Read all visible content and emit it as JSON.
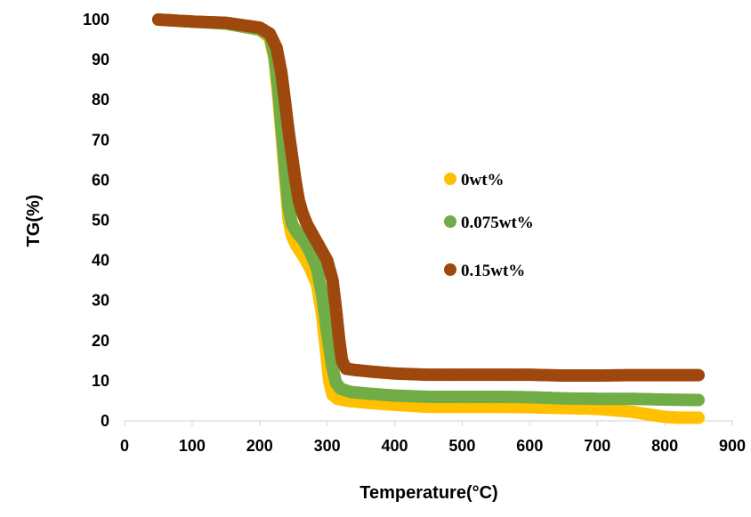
{
  "chart_data": {
    "type": "scatter",
    "title": "",
    "xlabel": "Temperature(°C)",
    "ylabel": "TG(%)",
    "xlim": [
      0,
      900
    ],
    "ylim": [
      0,
      100
    ],
    "xticks": [
      0,
      100,
      200,
      300,
      400,
      500,
      600,
      700,
      800,
      900
    ],
    "yticks": [
      0,
      10,
      20,
      30,
      40,
      50,
      60,
      70,
      80,
      90,
      100
    ],
    "grid": false,
    "legend_position": "right",
    "series": [
      {
        "name": "0wt%",
        "color": "#FFC000",
        "points": [
          [
            50,
            100
          ],
          [
            100,
            99.5
          ],
          [
            150,
            99
          ],
          [
            200,
            97.5
          ],
          [
            215,
            95.5
          ],
          [
            222,
            90
          ],
          [
            228,
            80
          ],
          [
            233,
            70
          ],
          [
            238,
            60
          ],
          [
            243,
            50
          ],
          [
            248,
            46
          ],
          [
            255,
            43.5
          ],
          [
            265,
            41
          ],
          [
            275,
            38
          ],
          [
            285,
            34
          ],
          [
            292,
            27
          ],
          [
            298,
            18
          ],
          [
            303,
            10
          ],
          [
            308,
            6.5
          ],
          [
            315,
            5.5
          ],
          [
            330,
            5
          ],
          [
            360,
            4.5
          ],
          [
            400,
            4
          ],
          [
            450,
            3.5
          ],
          [
            500,
            3.5
          ],
          [
            550,
            3.5
          ],
          [
            600,
            3.4
          ],
          [
            650,
            3.2
          ],
          [
            700,
            3
          ],
          [
            750,
            2.3
          ],
          [
            780,
            1.5
          ],
          [
            800,
            1
          ],
          [
            820,
            0.8
          ],
          [
            850,
            0.8
          ]
        ]
      },
      {
        "name": "0.075wt%",
        "color": "#70AD47",
        "points": [
          [
            50,
            100
          ],
          [
            100,
            99.5
          ],
          [
            150,
            99
          ],
          [
            200,
            97.5
          ],
          [
            215,
            96
          ],
          [
            222,
            91
          ],
          [
            228,
            82
          ],
          [
            233,
            72
          ],
          [
            238,
            62
          ],
          [
            243,
            53
          ],
          [
            248,
            49
          ],
          [
            255,
            47
          ],
          [
            265,
            45
          ],
          [
            275,
            42
          ],
          [
            285,
            38
          ],
          [
            293,
            31
          ],
          [
            300,
            22
          ],
          [
            307,
            14
          ],
          [
            313,
            9.5
          ],
          [
            320,
            8
          ],
          [
            335,
            7.2
          ],
          [
            360,
            6.8
          ],
          [
            400,
            6.3
          ],
          [
            450,
            6
          ],
          [
            500,
            6
          ],
          [
            550,
            6
          ],
          [
            600,
            5.9
          ],
          [
            650,
            5.6
          ],
          [
            700,
            5.5
          ],
          [
            750,
            5.5
          ],
          [
            800,
            5.3
          ],
          [
            850,
            5.2
          ]
        ]
      },
      {
        "name": "0.15wt%",
        "color": "#9E480E",
        "points": [
          [
            50,
            100
          ],
          [
            100,
            99.5
          ],
          [
            150,
            99.2
          ],
          [
            200,
            98
          ],
          [
            215,
            96.5
          ],
          [
            225,
            93
          ],
          [
            232,
            87
          ],
          [
            238,
            79
          ],
          [
            243,
            72
          ],
          [
            248,
            66
          ],
          [
            253,
            60
          ],
          [
            258,
            55
          ],
          [
            263,
            52
          ],
          [
            270,
            49
          ],
          [
            280,
            46
          ],
          [
            290,
            43
          ],
          [
            300,
            40
          ],
          [
            308,
            35
          ],
          [
            313,
            28
          ],
          [
            318,
            20
          ],
          [
            322,
            15
          ],
          [
            328,
            13
          ],
          [
            340,
            12.7
          ],
          [
            370,
            12.2
          ],
          [
            400,
            11.8
          ],
          [
            450,
            11.5
          ],
          [
            500,
            11.5
          ],
          [
            550,
            11.5
          ],
          [
            600,
            11.5
          ],
          [
            650,
            11.3
          ],
          [
            700,
            11.3
          ],
          [
            750,
            11.4
          ],
          [
            800,
            11.4
          ],
          [
            850,
            11.4
          ]
        ]
      }
    ]
  }
}
